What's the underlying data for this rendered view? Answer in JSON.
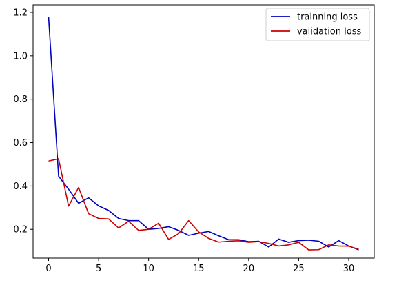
{
  "chart_data": {
    "type": "line",
    "title": "",
    "xlabel": "",
    "ylabel": "",
    "xlim": [
      -1.55,
      32.55
    ],
    "ylim": [
      0.067,
      1.235
    ],
    "x_ticks": [
      0,
      5,
      10,
      15,
      20,
      25,
      30
    ],
    "y_ticks": [
      0.2,
      0.4,
      0.6,
      0.8,
      1.0,
      1.2
    ],
    "x_tick_labels": [
      "0",
      "5",
      "10",
      "15",
      "20",
      "25",
      "30"
    ],
    "y_tick_labels": [
      "0.2",
      "0.4",
      "0.6",
      "0.8",
      "1.0",
      "1.2"
    ],
    "grid": false,
    "legend_position": "top-right",
    "x": [
      0,
      1,
      2,
      3,
      4,
      5,
      6,
      7,
      8,
      9,
      10,
      11,
      12,
      13,
      14,
      15,
      16,
      17,
      18,
      19,
      20,
      21,
      22,
      23,
      24,
      25,
      26,
      27,
      28,
      29,
      30,
      31
    ],
    "series": [
      {
        "name": "trainning loss",
        "color": "#0000bf",
        "values": [
          1.18,
          0.445,
          0.385,
          0.32,
          0.345,
          0.308,
          0.287,
          0.25,
          0.24,
          0.24,
          0.2,
          0.204,
          0.212,
          0.195,
          0.172,
          0.182,
          0.19,
          0.17,
          0.152,
          0.152,
          0.143,
          0.145,
          0.118,
          0.155,
          0.14,
          0.148,
          0.15,
          0.145,
          0.118,
          0.148,
          0.123,
          0.105
        ]
      },
      {
        "name": "validation loss",
        "color": "#cc0000",
        "values": [
          0.515,
          0.525,
          0.307,
          0.393,
          0.272,
          0.25,
          0.248,
          0.206,
          0.237,
          0.195,
          0.2,
          0.228,
          0.153,
          0.18,
          0.24,
          0.188,
          0.158,
          0.141,
          0.145,
          0.147,
          0.14,
          0.143,
          0.135,
          0.123,
          0.128,
          0.14,
          0.105,
          0.106,
          0.128,
          0.123,
          0.122,
          0.108
        ]
      }
    ]
  }
}
